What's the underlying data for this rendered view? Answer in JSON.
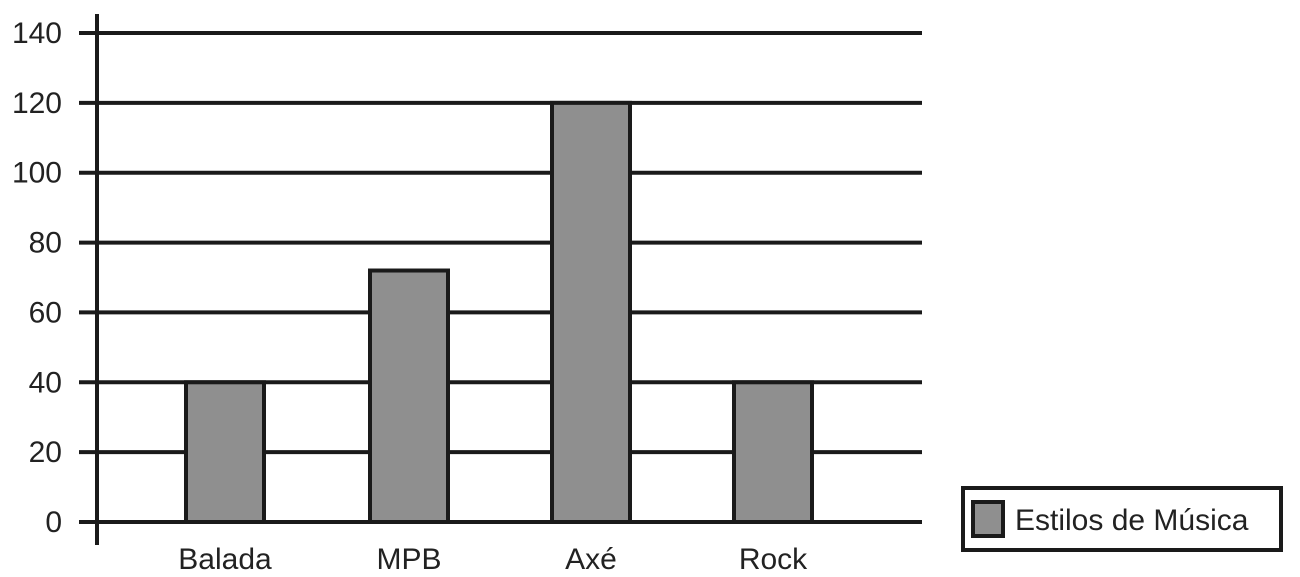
{
  "chart_data": {
    "type": "bar",
    "categories": [
      "Balada",
      "MPB",
      "Axé",
      "Rock"
    ],
    "series": [
      {
        "name": "Estilos de Música",
        "values": [
          40,
          72,
          120,
          40
        ]
      }
    ],
    "yticks": [
      "0",
      "20",
      "40",
      "60",
      "80",
      "100",
      "120",
      "140"
    ],
    "ylim": [
      0,
      140
    ],
    "grid": true,
    "legend": "bottom-right",
    "colors": {
      "bar_fill": "#8f8f8f",
      "bar_stroke": "#1a1a1a",
      "grid": "#1a1a1a",
      "text": "#222222"
    }
  }
}
